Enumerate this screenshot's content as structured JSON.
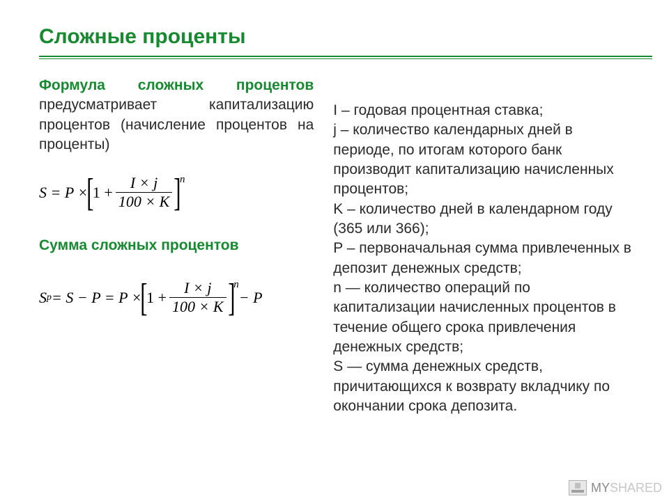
{
  "title_color": "#168a2f",
  "text_color": "#2a2a2a",
  "title": "Сложные проценты",
  "intro_strong": "Формула сложных процентов",
  "intro_rest": " предусматривает капитализацию процентов (начисление процентов на проценты)",
  "formula1": {
    "left": "S = P ×",
    "one": "1 +",
    "num": "I × j",
    "den": "100 × K",
    "power": "n"
  },
  "subtitle": "Сумма сложных процентов",
  "formula2": {
    "left1": "S",
    "sub": "p",
    "left2": " = S − P = P ×",
    "one": "1 +",
    "num": "I × j",
    "den": "100 × K",
    "power": "n",
    "tail": " − P"
  },
  "legend": "I – годовая процентная ставка;\nj – количество календарных дней в периоде, по итогам которого банк производит капитализацию начисленных процентов;\nK – количество дней в календарном году (365 или 366);\nP – первоначальная сумма привлеченных в депозит денежных средств;\nn — количество операций по капитализации начисленных процентов в течение общего срока привлечения денежных средств;\nS — сумма денежных средств, причитающихся к возврату вкладчику по окончании срока депозита.",
  "watermark_prefix": "MY",
  "watermark_suffix": "SHARED"
}
